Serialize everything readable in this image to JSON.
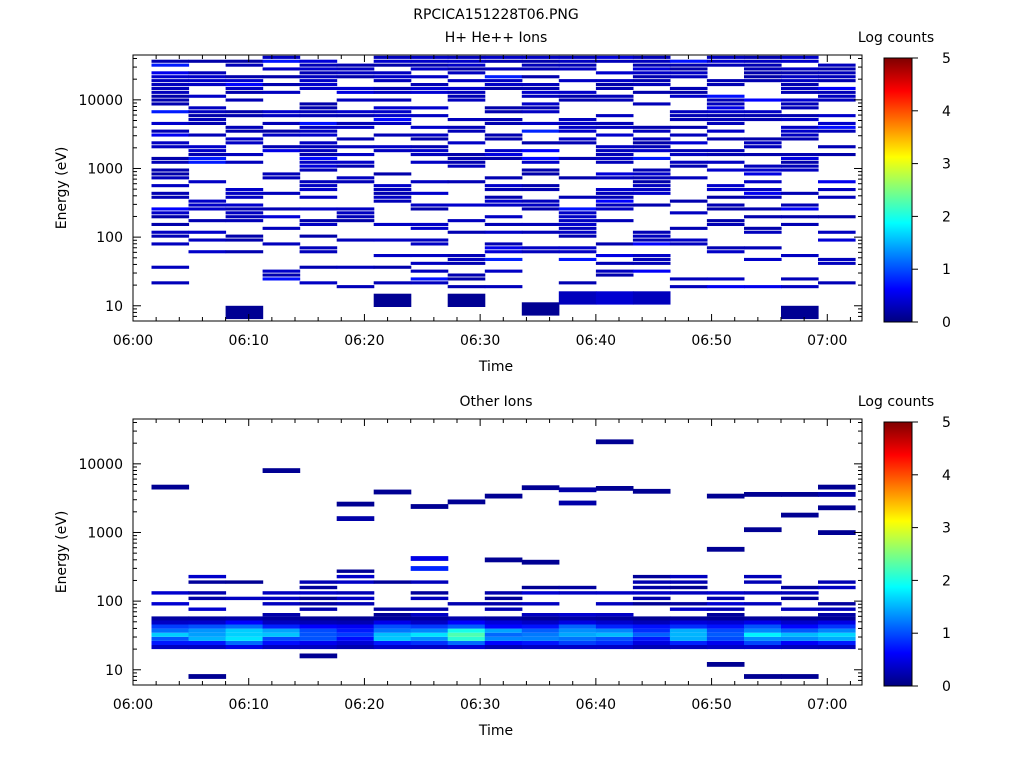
{
  "figure": {
    "title": "RPCICA151228T06.PNG",
    "colorbar_label": "Log counts"
  },
  "chart_data": [
    {
      "type": "heatmap",
      "title": "H+ He++ Ions",
      "xlabel": "Time",
      "ylabel": "Energy (eV)",
      "x_ticks": [
        "06:00",
        "06:10",
        "06:20",
        "06:30",
        "06:40",
        "06:50",
        "07:00"
      ],
      "x_range_minutes": [
        0,
        63
      ],
      "y_scale": "log",
      "ylim": [
        6,
        45000
      ],
      "y_ticks": [
        "10",
        "100",
        "1000",
        "10000"
      ],
      "colorbar": {
        "label": "Log counts",
        "range": [
          0,
          5
        ],
        "ticks": [
          "0",
          "1",
          "2",
          "3",
          "4",
          "5"
        ]
      },
      "time_bins_start_minutes": [
        1.6,
        4.8,
        8.0,
        11.2,
        14.4,
        17.6,
        20.8,
        24.0,
        27.2,
        30.4,
        33.6,
        36.8,
        40.0,
        43.2,
        46.4,
        49.6,
        52.8,
        56.0,
        59.2
      ],
      "time_bin_width_minutes": 3.2,
      "energy_range_eV": [
        18,
        45000
      ],
      "energy_levels": 60,
      "typical_log_counts": 0.2,
      "max_log_counts": 0.8,
      "low_energy_cells": [
        {
          "time_bin": 2,
          "energy_eV": 8,
          "log_counts": 0.1
        },
        {
          "time_bin": 6,
          "energy_eV": 12,
          "log_counts": 0.1
        },
        {
          "time_bin": 8,
          "energy_eV": 12,
          "log_counts": 0.1
        },
        {
          "time_bin": 10,
          "energy_eV": 9,
          "log_counts": 0.1
        },
        {
          "time_bin": 11,
          "energy_eV": 13,
          "log_counts": 0.3
        },
        {
          "time_bin": 12,
          "energy_eV": 13,
          "log_counts": 0.4
        },
        {
          "time_bin": 13,
          "energy_eV": 13,
          "log_counts": 0.3
        },
        {
          "time_bin": 17,
          "energy_eV": 8,
          "log_counts": 0.1
        }
      ]
    },
    {
      "type": "heatmap",
      "title": "Other Ions",
      "xlabel": "Time",
      "ylabel": "Energy (eV)",
      "x_ticks": [
        "06:00",
        "06:10",
        "06:20",
        "06:30",
        "06:40",
        "06:50",
        "07:00"
      ],
      "x_range_minutes": [
        0,
        63
      ],
      "y_scale": "log",
      "ylim": [
        6,
        45000
      ],
      "y_ticks": [
        "10",
        "100",
        "1000",
        "10000"
      ],
      "colorbar": {
        "label": "Log counts",
        "range": [
          0,
          5
        ],
        "ticks": [
          "0",
          "1",
          "2",
          "3",
          "4",
          "5"
        ]
      },
      "time_bins_start_minutes": [
        1.6,
        4.8,
        8.0,
        11.2,
        14.4,
        17.6,
        20.8,
        24.0,
        27.2,
        30.4,
        33.6,
        36.8,
        40.0,
        43.2,
        46.4,
        49.6,
        52.8,
        56.0,
        59.2
      ],
      "time_bin_width_minutes": 3.2,
      "core_band": {
        "energy_range_eV": [
          20,
          60
        ],
        "log_counts_by_time_bin": [
          1.5,
          1.6,
          1.9,
          1.4,
          1.2,
          1.0,
          1.7,
          1.5,
          2.2,
          1.4,
          1.3,
          1.6,
          1.5,
          1.1,
          1.5,
          1.3,
          1.6,
          1.4,
          1.5
        ]
      },
      "sparse_cells": [
        {
          "time_bin": 0,
          "energy_eV": 4600,
          "log_counts": 0.1
        },
        {
          "time_bin": 3,
          "energy_eV": 8000,
          "log_counts": 0.1
        },
        {
          "time_bin": 5,
          "energy_eV": 2600,
          "log_counts": 0.1
        },
        {
          "time_bin": 5,
          "energy_eV": 1600,
          "log_counts": 0.2
        },
        {
          "time_bin": 6,
          "energy_eV": 3900,
          "log_counts": 0.1
        },
        {
          "time_bin": 7,
          "energy_eV": 2400,
          "log_counts": 0.1
        },
        {
          "time_bin": 7,
          "energy_eV": 420,
          "log_counts": 0.5
        },
        {
          "time_bin": 7,
          "energy_eV": 300,
          "log_counts": 0.8
        },
        {
          "time_bin": 8,
          "energy_eV": 2800,
          "log_counts": 0.1
        },
        {
          "time_bin": 9,
          "energy_eV": 3400,
          "log_counts": 0.1
        },
        {
          "time_bin": 9,
          "energy_eV": 400,
          "log_counts": 0.1
        },
        {
          "time_bin": 10,
          "energy_eV": 4500,
          "log_counts": 0.1
        },
        {
          "time_bin": 10,
          "energy_eV": 370,
          "log_counts": 0.1
        },
        {
          "time_bin": 11,
          "energy_eV": 4200,
          "log_counts": 0.2
        },
        {
          "time_bin": 11,
          "energy_eV": 2700,
          "log_counts": 0.2
        },
        {
          "time_bin": 12,
          "energy_eV": 21000,
          "log_counts": 0.1
        },
        {
          "time_bin": 12,
          "energy_eV": 4400,
          "log_counts": 0.1
        },
        {
          "time_bin": 13,
          "energy_eV": 4000,
          "log_counts": 0.1
        },
        {
          "time_bin": 15,
          "energy_eV": 3400,
          "log_counts": 0.1
        },
        {
          "time_bin": 15,
          "energy_eV": 570,
          "log_counts": 0.1
        },
        {
          "time_bin": 16,
          "energy_eV": 3600,
          "log_counts": 0.1
        },
        {
          "time_bin": 16,
          "energy_eV": 1100,
          "log_counts": 0.1
        },
        {
          "time_bin": 17,
          "energy_eV": 3600,
          "log_counts": 0.1
        },
        {
          "time_bin": 17,
          "energy_eV": 1800,
          "log_counts": 0.1
        },
        {
          "time_bin": 18,
          "energy_eV": 4600,
          "log_counts": 0.1
        },
        {
          "time_bin": 18,
          "energy_eV": 3600,
          "log_counts": 0.2
        },
        {
          "time_bin": 18,
          "energy_eV": 2300,
          "log_counts": 0.1
        },
        {
          "time_bin": 18,
          "energy_eV": 1000,
          "log_counts": 0.1
        },
        {
          "time_bin": 1,
          "energy_eV": 8,
          "log_counts": 0.1
        },
        {
          "time_bin": 4,
          "energy_eV": 16,
          "log_counts": 0.1
        },
        {
          "time_bin": 15,
          "energy_eV": 12,
          "log_counts": 0.1
        },
        {
          "time_bin": 16,
          "energy_eV": 8,
          "log_counts": 0.1
        },
        {
          "time_bin": 17,
          "energy_eV": 8,
          "log_counts": 0.1
        }
      ]
    }
  ]
}
